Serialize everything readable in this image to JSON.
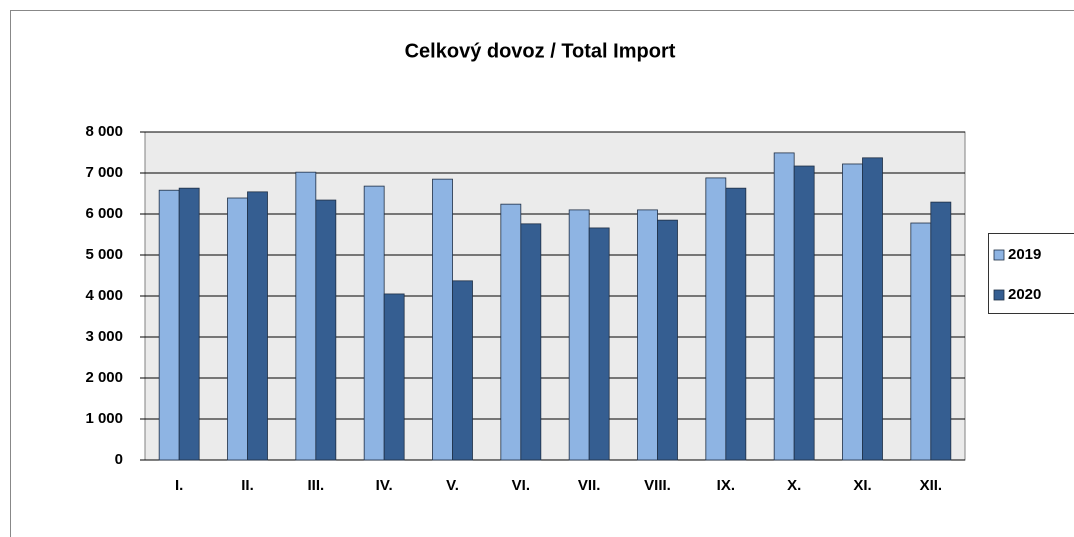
{
  "chart_data": {
    "type": "bar",
    "title": "Celkový dovoz / Total Import",
    "categories": [
      "I.",
      "II.",
      "III.",
      "IV.",
      "V.",
      "VI.",
      "VII.",
      "VIII.",
      "IX.",
      "X.",
      "XI.",
      "XII."
    ],
    "series": [
      {
        "name": "2019",
        "color": "#8eb4e3",
        "values": [
          6580,
          6390,
          7020,
          6680,
          6850,
          6240,
          6100,
          6100,
          6880,
          7490,
          7220,
          5780
        ]
      },
      {
        "name": "2020",
        "color": "#355e91",
        "values": [
          6630,
          6540,
          6340,
          4050,
          4370,
          5760,
          5660,
          5850,
          6630,
          7170,
          7370,
          6290
        ]
      }
    ],
    "ylim": [
      0,
      8000
    ],
    "yticks": [
      0,
      {
        "value": 1000,
        "label": "1 000"
      },
      {
        "value": 2000,
        "label": "2 000"
      },
      {
        "value": 3000,
        "label": "3 000"
      },
      {
        "value": 4000,
        "label": "4 000"
      },
      {
        "value": 5000,
        "label": "5 000"
      },
      {
        "value": 6000,
        "label": "6 000"
      },
      {
        "value": 7000,
        "label": "7 000"
      },
      {
        "value": 8000,
        "label": "8 000"
      }
    ],
    "grid": true,
    "legend": "right"
  }
}
